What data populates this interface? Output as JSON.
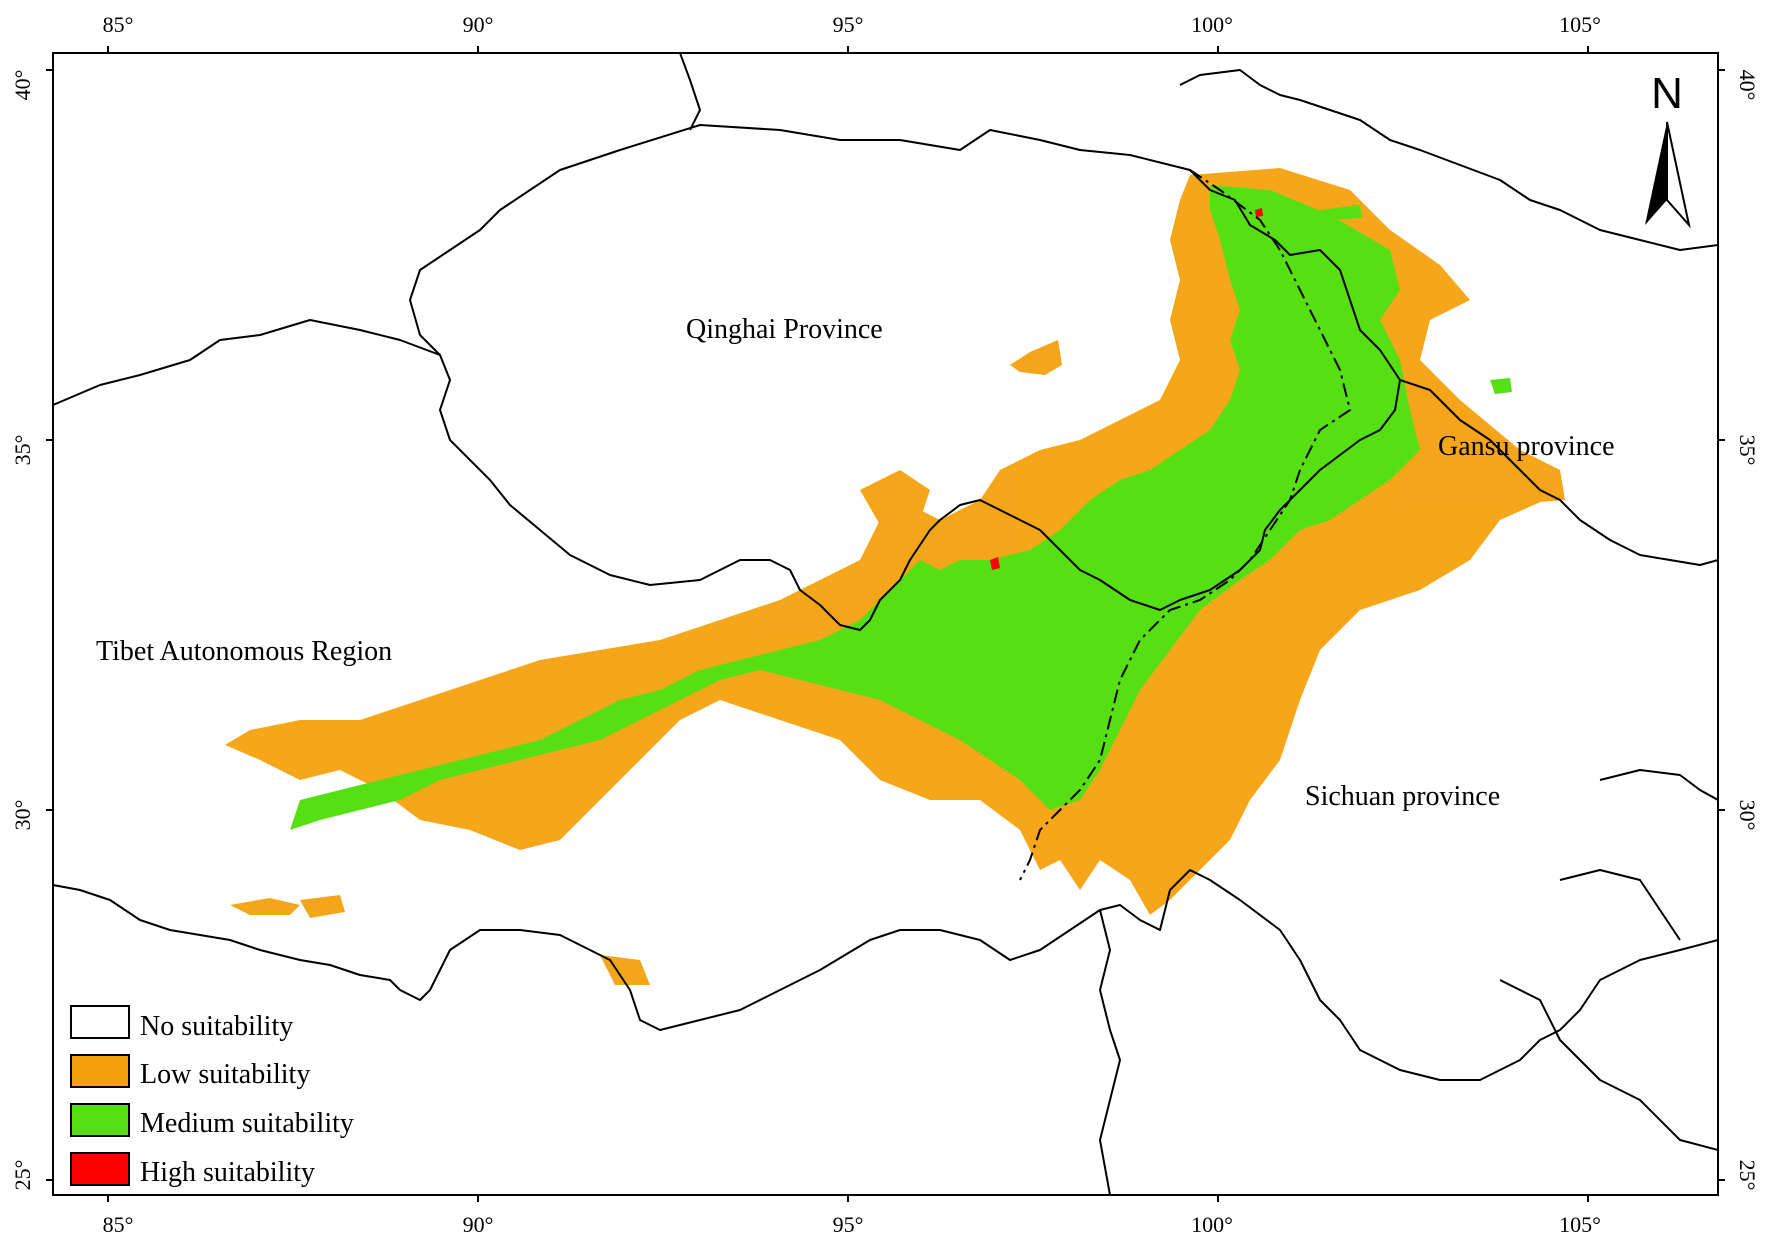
{
  "map": {
    "lon_ticks": [
      "85°",
      "90°",
      "95°",
      "100°",
      "105°"
    ],
    "lat_ticks": [
      "40°",
      "35°",
      "30°",
      "25°"
    ],
    "regions": {
      "qinghai": "Qinghai Province",
      "tibet": "Tibet Autonomous Region",
      "gansu": "Gansu province",
      "sichuan": "Sichuan province"
    },
    "north_arrow": "N",
    "legend": [
      {
        "label": "No suitability",
        "color": "#ffffff"
      },
      {
        "label": "Low suitability",
        "color": "#f5a10d"
      },
      {
        "label": "Medium suitability",
        "color": "#56e014"
      },
      {
        "label": "High suitability",
        "color": "#ff0000"
      }
    ],
    "colors": {
      "low": "#f5a10d",
      "medium": "#56e014",
      "high": "#ff0000"
    }
  }
}
